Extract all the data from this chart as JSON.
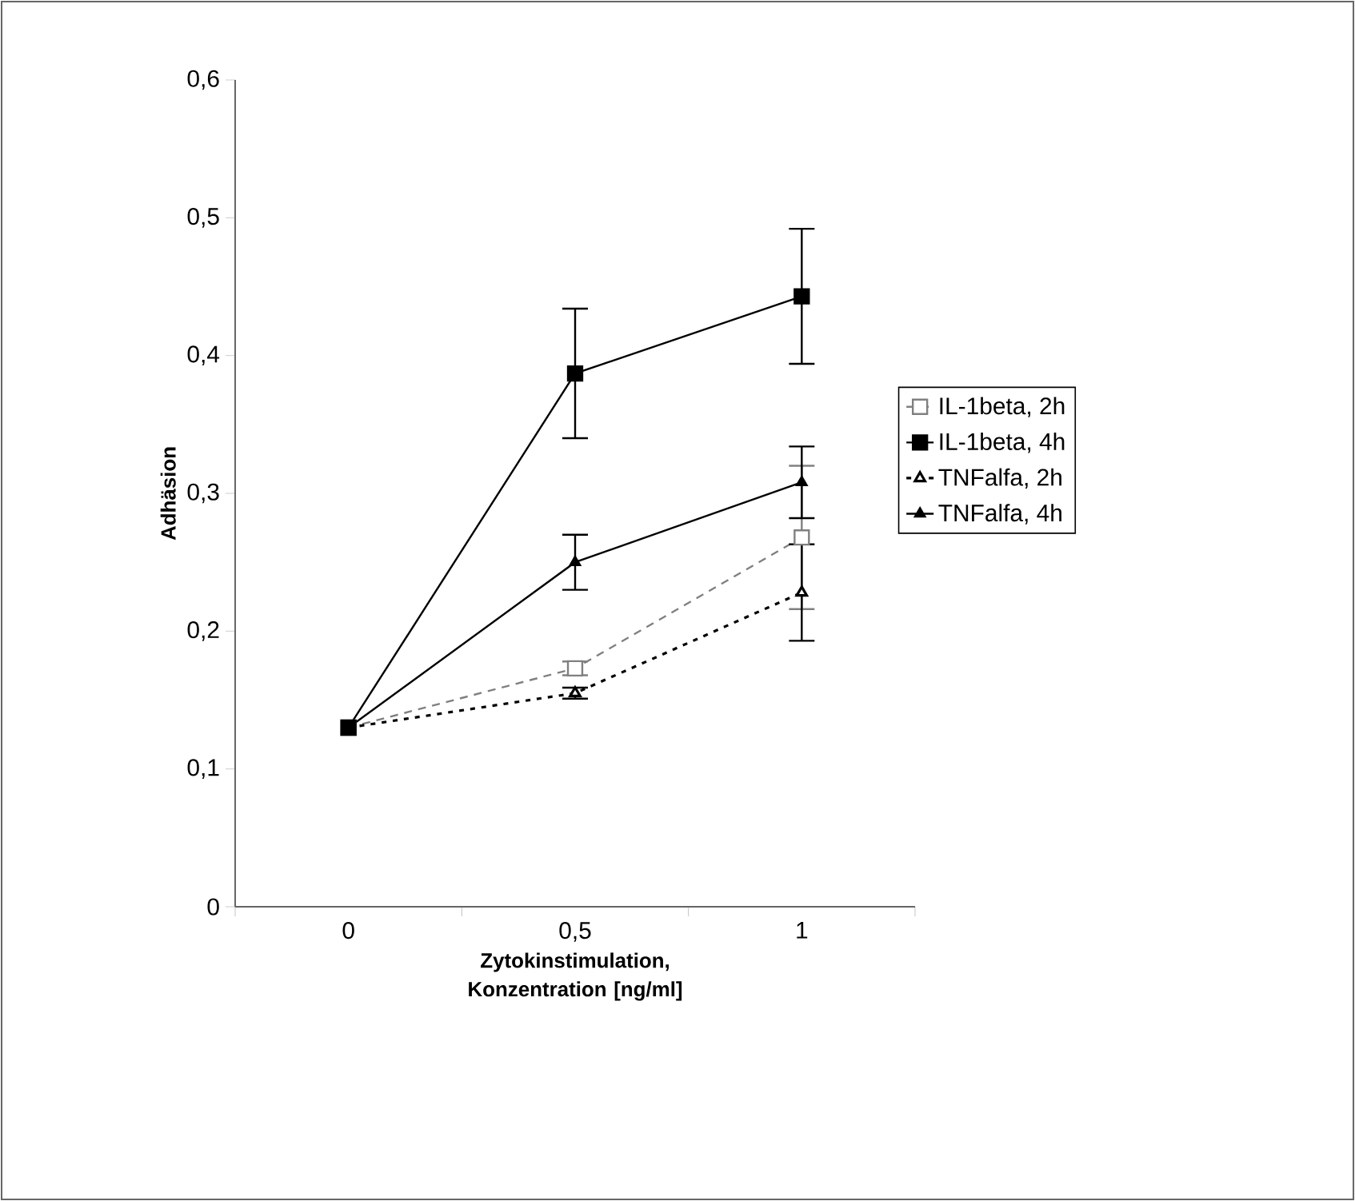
{
  "chart_data": {
    "type": "line",
    "xlabel": "Zytokinstimulation, Konzentration [ng/ml]",
    "ylabel": "Adhäsion",
    "categories": [
      "0",
      "0,5",
      "1"
    ],
    "ylim": [
      0,
      0.6
    ],
    "yticks": [
      0,
      {
        "value": 0.1,
        "label": "0,1"
      },
      {
        "value": 0.2,
        "label": "0,2"
      },
      {
        "value": 0.3,
        "label": "0,3"
      },
      {
        "value": 0.4,
        "label": "0,4"
      },
      {
        "value": 0.5,
        "label": "0,5"
      },
      {
        "value": 0.6,
        "label": "0,6"
      }
    ],
    "legend": "right",
    "grid": false,
    "series": [
      {
        "name": "IL-1beta, 2h",
        "color": "#808080",
        "marker": "square",
        "line_style": "dashed",
        "values": [
          0.13,
          0.173,
          0.268
        ],
        "errors": [
          null,
          0.005,
          0.052
        ]
      },
      {
        "name": "IL-1beta, 4h",
        "color": "#000000",
        "marker": "square",
        "line_style": "solid",
        "values": [
          0.13,
          0.387,
          0.443
        ],
        "errors": [
          null,
          0.047,
          0.049
        ]
      },
      {
        "name": "TNFalfa, 2h",
        "color": "#000000",
        "marker": "triangle",
        "line_style": "dotted",
        "values": [
          0.13,
          0.155,
          0.228
        ],
        "errors": [
          null,
          0.004,
          0.035
        ]
      },
      {
        "name": "TNFalfa, 4h",
        "color": "#000000",
        "marker": "triangle",
        "line_style": "solid",
        "values": [
          0.13,
          0.25,
          0.308
        ],
        "errors": [
          null,
          0.02,
          0.026
        ]
      }
    ]
  }
}
